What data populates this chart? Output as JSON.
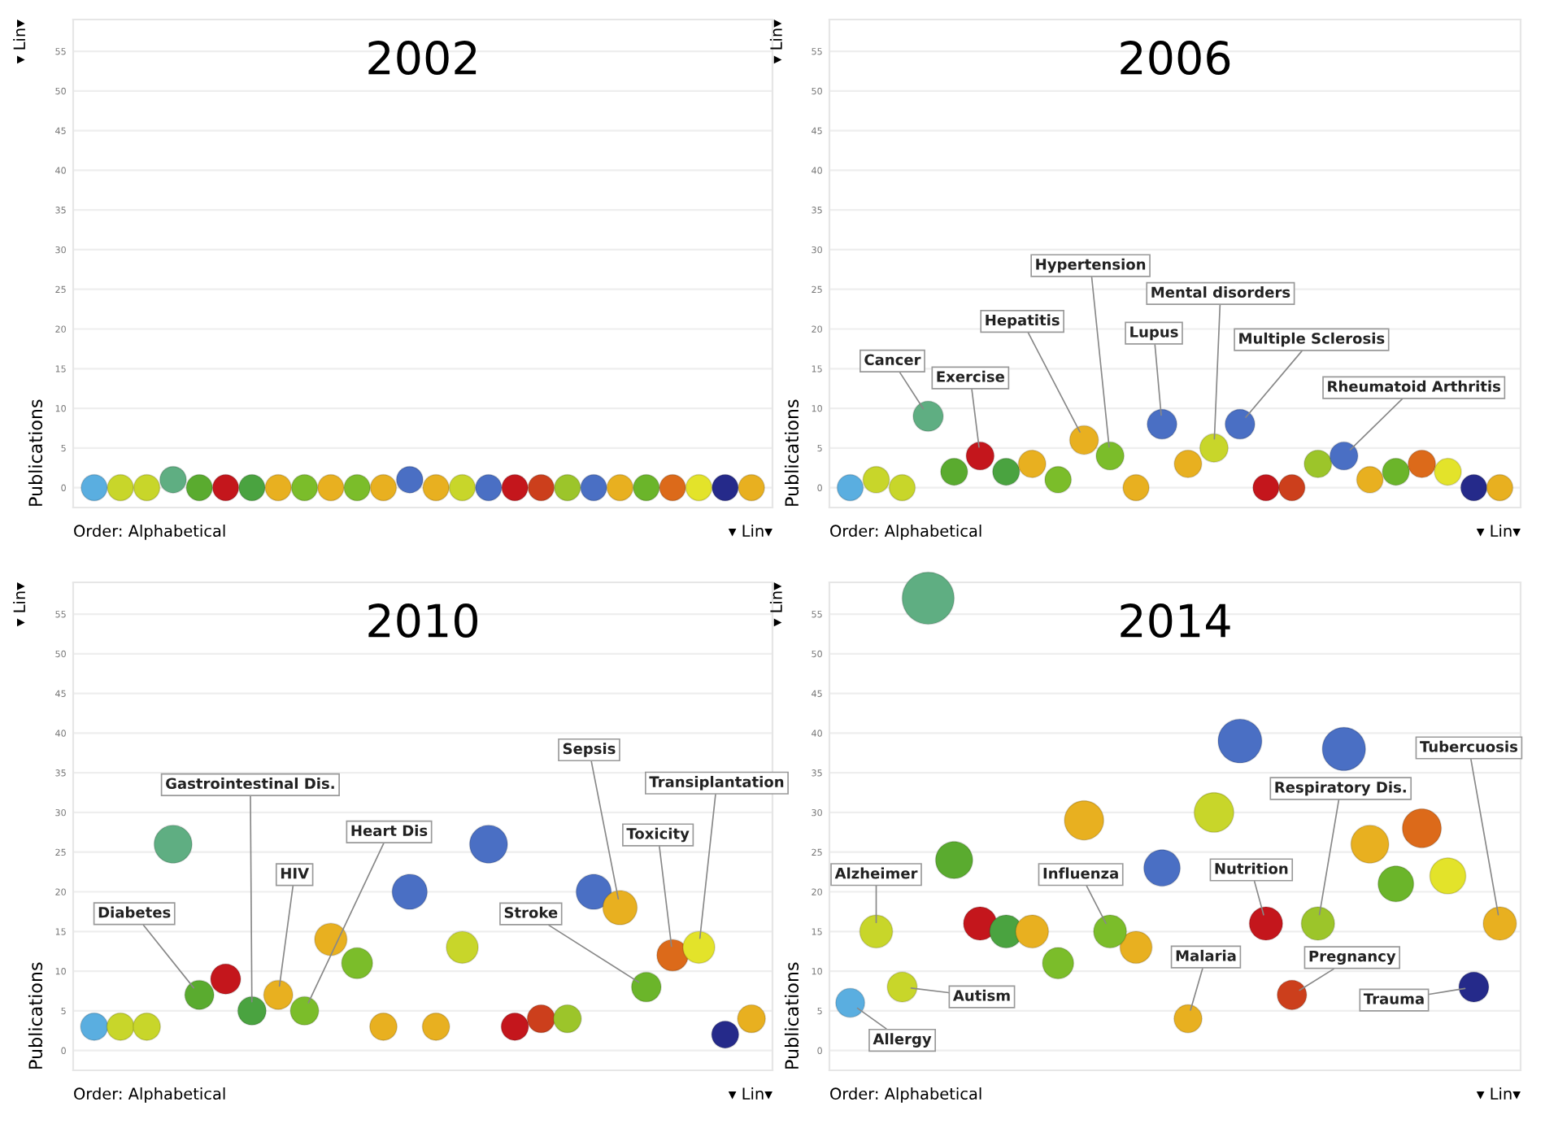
{
  "chart_data": [
    {
      "type": "bubble",
      "title": "2002",
      "ylabel": "Publications",
      "categories": [
        null,
        null,
        null,
        null,
        null,
        null,
        null,
        null,
        null,
        null,
        null,
        null,
        null,
        null,
        null,
        null,
        null,
        null,
        null,
        null,
        null,
        null,
        null,
        null,
        null,
        null
      ],
      "series": [
        {
          "values": [
            0,
            0,
            0,
            1,
            0,
            0,
            0,
            0,
            0,
            0,
            0,
            0,
            1,
            0,
            0,
            0,
            0,
            0,
            0,
            0,
            0,
            0,
            0,
            0,
            0,
            0
          ],
          "sizes": [
            0.97,
            0.97,
            0.97,
            1,
            0.97,
            0.97,
            0.97,
            0.97,
            0.97,
            0.97,
            0.97,
            0.97,
            1,
            0.97,
            0.97,
            0.97,
            0.97,
            0.97,
            0.97,
            0.97,
            0.97,
            0.97,
            0.97,
            0.97,
            0.97,
            0.97
          ],
          "colors": [
            "#5aaee0",
            "#c8d62a",
            "#c8d62a",
            "#5fae82",
            "#5aab2f",
            "#c4161c",
            "#4aa340",
            "#e8b020",
            "#7bbd2a",
            "#e8b020",
            "#7bbd2a",
            "#e8b020",
            "#4a6fc4",
            "#e8b020",
            "#c8d62a",
            "#4a6fc4",
            "#c4161c",
            "#cc3f1c",
            "#9cc52a",
            "#4a6fc4",
            "#e8b020",
            "#6bb52a",
            "#dc6a1a",
            "#e3e32a",
            "#252a8a",
            "#e8b020"
          ]
        }
      ],
      "ylim": [
        -2.5,
        59
      ],
      "yticks": [
        0,
        5,
        10,
        15,
        20,
        25,
        30,
        35,
        40,
        45,
        50,
        55
      ],
      "grid": "y",
      "annotations": [
        "Order: Alphabetical",
        "▾ Lin▾",
        "▾ Lin▾"
      ]
    },
    {
      "type": "bubble",
      "title": "2010",
      "ylabel": "Publications",
      "categories": [
        null,
        null,
        null,
        null,
        null,
        null,
        null,
        null,
        null,
        null,
        null,
        null,
        null,
        null,
        null,
        null,
        null,
        null,
        null,
        null,
        null,
        null,
        null,
        null,
        null,
        null
      ],
      "series": [
        {
          "values": [
            3,
            3,
            3,
            26,
            null,
            9,
            null,
            null,
            null,
            14,
            11,
            3,
            20,
            3,
            13,
            26,
            3,
            4,
            4,
            20,
            null,
            null,
            null,
            null,
            2,
            4
          ],
          "sizes": [
            0.52,
            0.52,
            0.52,
            1,
            null,
            0.63,
            null,
            null,
            null,
            0.73,
            0.67,
            0.52,
            0.86,
            0.52,
            0.71,
            1,
            0.52,
            0.54,
            0.54,
            0.86,
            null,
            null,
            null,
            null,
            0.51,
            0.54
          ],
          "colors": [
            "#5aaee0",
            "#c8d62a",
            "#c8d62a",
            "#5fae82",
            null,
            "#c4161c",
            null,
            null,
            null,
            "#e8b020",
            "#7bbd2a",
            "#e8b020",
            "#4a6fc4",
            "#e8b020",
            "#c8d62a",
            "#4a6fc4",
            "#c4161c",
            "#cc3f1c",
            "#9cc52a",
            "#4a6fc4",
            null,
            null,
            null,
            null,
            "#252a8a",
            "#e8b020"
          ]
        },
        {
          "name": "Diabetes",
          "color": "#5aab2f",
          "values": [
            null,
            null,
            null,
            null,
            7,
            null,
            null,
            null,
            null,
            null,
            null,
            null,
            null,
            null,
            null,
            null,
            null,
            null,
            null,
            null,
            null,
            null,
            null,
            null,
            null,
            null
          ],
          "sizes": [
            null,
            null,
            null,
            null,
            0.59,
            null,
            null,
            null,
            null,
            null,
            null,
            null,
            null,
            null,
            null,
            null,
            null,
            null,
            null,
            null,
            null,
            null,
            null,
            null,
            null,
            null
          ]
        },
        {
          "name": "Gastrointestinal Dis.",
          "color": "#4aa340",
          "values": [
            null,
            null,
            null,
            null,
            null,
            null,
            5,
            null,
            null,
            null,
            null,
            null,
            null,
            null,
            null,
            null,
            null,
            null,
            null,
            null,
            null,
            null,
            null,
            null,
            null,
            null
          ],
          "sizes": [
            null,
            null,
            null,
            null,
            null,
            null,
            0.56,
            null,
            null,
            null,
            null,
            null,
            null,
            null,
            null,
            null,
            null,
            null,
            null,
            null,
            null,
            null,
            null,
            null,
            null,
            null
          ]
        },
        {
          "name": "HIV",
          "color": "#e8b020",
          "values": [
            null,
            null,
            null,
            null,
            null,
            null,
            null,
            7,
            null,
            null,
            null,
            null,
            null,
            null,
            null,
            null,
            null,
            null,
            null,
            null,
            null,
            null,
            null,
            null,
            null,
            null
          ],
          "sizes": [
            null,
            null,
            null,
            null,
            null,
            null,
            null,
            0.59,
            null,
            null,
            null,
            null,
            null,
            null,
            null,
            null,
            null,
            null,
            null,
            null,
            null,
            null,
            null,
            null,
            null,
            null
          ]
        },
        {
          "name": "Heart Dis",
          "color": "#7bbd2a",
          "values": [
            null,
            null,
            null,
            null,
            null,
            null,
            null,
            null,
            5,
            null,
            null,
            null,
            null,
            null,
            null,
            null,
            null,
            null,
            null,
            null,
            null,
            null,
            null,
            null,
            null,
            null
          ],
          "sizes": [
            null,
            null,
            null,
            null,
            null,
            null,
            null,
            null,
            0.56,
            null,
            null,
            null,
            null,
            null,
            null,
            null,
            null,
            null,
            null,
            null,
            null,
            null,
            null,
            null,
            null,
            null
          ]
        },
        {
          "name": "Sepsis",
          "color": "#e8b020",
          "values": [
            null,
            null,
            null,
            null,
            null,
            null,
            null,
            null,
            null,
            null,
            null,
            null,
            null,
            null,
            null,
            null,
            null,
            null,
            null,
            null,
            18,
            null,
            null,
            null,
            null,
            null
          ],
          "sizes": [
            null,
            null,
            null,
            null,
            null,
            null,
            null,
            null,
            null,
            null,
            null,
            null,
            null,
            null,
            null,
            null,
            null,
            null,
            null,
            null,
            0.82,
            null,
            null,
            null,
            null,
            null
          ]
        },
        {
          "name": "Stroke",
          "color": "#6bb52a",
          "values": [
            null,
            null,
            null,
            null,
            null,
            null,
            null,
            null,
            null,
            null,
            null,
            null,
            null,
            null,
            null,
            null,
            null,
            null,
            null,
            null,
            null,
            8,
            null,
            null,
            null,
            null
          ],
          "sizes": [
            null,
            null,
            null,
            null,
            null,
            null,
            null,
            null,
            null,
            null,
            null,
            null,
            null,
            null,
            null,
            null,
            null,
            null,
            null,
            null,
            null,
            0.61,
            null,
            null,
            null,
            null
          ]
        },
        {
          "name": "Toxicity",
          "color": "#dc6a1a",
          "values": [
            null,
            null,
            null,
            null,
            null,
            null,
            null,
            null,
            null,
            null,
            null,
            null,
            null,
            null,
            null,
            null,
            null,
            null,
            null,
            null,
            null,
            null,
            12,
            null,
            null,
            null
          ],
          "sizes": [
            null,
            null,
            null,
            null,
            null,
            null,
            null,
            null,
            null,
            null,
            null,
            null,
            null,
            null,
            null,
            null,
            null,
            null,
            null,
            null,
            null,
            null,
            0.69,
            null,
            null,
            null
          ]
        },
        {
          "name": "Transiplantation",
          "color": "#e3e32a",
          "values": [
            null,
            null,
            null,
            null,
            null,
            null,
            null,
            null,
            null,
            null,
            null,
            null,
            null,
            null,
            null,
            null,
            null,
            null,
            null,
            null,
            null,
            null,
            null,
            13,
            null,
            null
          ],
          "sizes": [
            null,
            null,
            null,
            null,
            null,
            null,
            null,
            null,
            null,
            null,
            null,
            null,
            null,
            null,
            null,
            null,
            null,
            null,
            null,
            null,
            null,
            null,
            null,
            0.71,
            null,
            null
          ]
        }
      ],
      "ylim": [
        -2.5,
        59
      ],
      "yticks": [
        0,
        5,
        10,
        15,
        20,
        25,
        30,
        35,
        40,
        45,
        50,
        55
      ],
      "grid": "y",
      "annotations": [
        "Order: Alphabetical",
        "▾ Lin▾",
        "▾ Lin▾"
      ]
    },
    {
      "type": "bubble",
      "title": "2006",
      "ylabel": "Publications",
      "categories": [
        null,
        null,
        null,
        null,
        null,
        null,
        null,
        null,
        null,
        null,
        null,
        null,
        null,
        null,
        null,
        null,
        null,
        null,
        null,
        null,
        null,
        null,
        null,
        null,
        null,
        null
      ],
      "series": [
        {
          "values": [
            0,
            1,
            0,
            null,
            2,
            null,
            2,
            3,
            1,
            null,
            null,
            0,
            null,
            3,
            null,
            null,
            0,
            0,
            3,
            null,
            1,
            2,
            3,
            2,
            0,
            0
          ],
          "sizes": [
            0.75,
            0.77,
            0.75,
            null,
            0.8,
            null,
            0.8,
            0.83,
            0.77,
            null,
            null,
            0.75,
            null,
            0.83,
            null,
            null,
            0.75,
            0.75,
            0.83,
            null,
            0.77,
            0.8,
            0.83,
            0.8,
            0.75,
            0.75
          ],
          "colors": [
            "#5aaee0",
            "#c8d62a",
            "#c8d62a",
            null,
            "#5aab2f",
            null,
            "#4aa340",
            "#e8b020",
            "#7bbd2a",
            null,
            null,
            "#e8b020",
            null,
            "#e8b020",
            null,
            null,
            "#c4161c",
            "#cc3f1c",
            "#9cc52a",
            null,
            "#e8b020",
            "#6bb52a",
            "#dc6a1a",
            "#e3e32a",
            "#252a8a",
            "#e8b020"
          ]
        },
        {
          "name": "Cancer",
          "color": "#5fae82",
          "values": [
            null,
            null,
            null,
            9,
            null,
            null,
            null,
            null,
            null,
            null,
            null,
            null,
            null,
            null,
            null,
            null,
            null,
            null,
            null,
            null,
            null,
            null,
            null,
            null,
            null,
            null
          ],
          "sizes": [
            null,
            null,
            null,
            1,
            null,
            null,
            null,
            null,
            null,
            null,
            null,
            null,
            null,
            null,
            null,
            null,
            null,
            null,
            null,
            null,
            null,
            null,
            null,
            null,
            null,
            null
          ]
        },
        {
          "name": "Exercise",
          "color": "#c4161c",
          "values": [
            null,
            null,
            null,
            null,
            null,
            4,
            null,
            null,
            null,
            null,
            null,
            null,
            null,
            null,
            null,
            null,
            null,
            null,
            null,
            null,
            null,
            null,
            null,
            null,
            null,
            null
          ],
          "sizes": [
            null,
            null,
            null,
            null,
            null,
            0.86,
            null,
            null,
            null,
            null,
            null,
            null,
            null,
            null,
            null,
            null,
            null,
            null,
            null,
            null,
            null,
            null,
            null,
            null,
            null,
            null
          ]
        },
        {
          "name": "Hepatitis",
          "color": "#e8b020",
          "values": [
            null,
            null,
            null,
            null,
            null,
            null,
            null,
            null,
            null,
            6,
            null,
            null,
            null,
            null,
            null,
            null,
            null,
            null,
            null,
            null,
            null,
            null,
            null,
            null,
            null,
            null
          ],
          "sizes": [
            null,
            null,
            null,
            null,
            null,
            null,
            null,
            null,
            null,
            0.91,
            null,
            null,
            null,
            null,
            null,
            null,
            null,
            null,
            null,
            null,
            null,
            null,
            null,
            null,
            null,
            null
          ]
        },
        {
          "name": "Hypertension",
          "color": "#7bbd2a",
          "values": [
            null,
            null,
            null,
            null,
            null,
            null,
            null,
            null,
            null,
            null,
            4,
            null,
            null,
            null,
            null,
            null,
            null,
            null,
            null,
            null,
            null,
            null,
            null,
            null,
            null,
            null
          ],
          "sizes": [
            null,
            null,
            null,
            null,
            null,
            null,
            null,
            null,
            null,
            null,
            0.86,
            null,
            null,
            null,
            null,
            null,
            null,
            null,
            null,
            null,
            null,
            null,
            null,
            null,
            null,
            null
          ]
        },
        {
          "name": "Lupus",
          "color": "#4a6fc4",
          "values": [
            null,
            null,
            null,
            null,
            null,
            null,
            null,
            null,
            null,
            null,
            null,
            null,
            8,
            null,
            null,
            null,
            null,
            null,
            null,
            null,
            null,
            null,
            null,
            null,
            null,
            null
          ],
          "sizes": [
            null,
            null,
            null,
            null,
            null,
            null,
            null,
            null,
            null,
            null,
            null,
            null,
            0.97,
            null,
            null,
            null,
            null,
            null,
            null,
            null,
            null,
            null,
            null,
            null,
            null,
            null
          ]
        },
        {
          "name": "Mental disorders",
          "color": "#c8d62a",
          "values": [
            null,
            null,
            null,
            null,
            null,
            null,
            null,
            null,
            null,
            null,
            null,
            null,
            null,
            null,
            5,
            null,
            null,
            null,
            null,
            null,
            null,
            null,
            null,
            null,
            null,
            null
          ],
          "sizes": [
            null,
            null,
            null,
            null,
            null,
            null,
            null,
            null,
            null,
            null,
            null,
            null,
            null,
            null,
            0.88,
            null,
            null,
            null,
            null,
            null,
            null,
            null,
            null,
            null,
            null,
            null
          ]
        },
        {
          "name": "Multiple Sclerosis",
          "color": "#4a6fc4",
          "values": [
            null,
            null,
            null,
            null,
            null,
            null,
            null,
            null,
            null,
            null,
            null,
            null,
            null,
            null,
            null,
            8,
            null,
            null,
            null,
            null,
            null,
            null,
            null,
            null,
            null,
            null
          ],
          "sizes": [
            null,
            null,
            null,
            null,
            null,
            null,
            null,
            null,
            null,
            null,
            null,
            null,
            null,
            null,
            null,
            0.97,
            null,
            null,
            null,
            null,
            null,
            null,
            null,
            null,
            null,
            null
          ]
        },
        {
          "name": "Rheumatoid Arthritis",
          "color": "#4a6fc4",
          "values": [
            null,
            null,
            null,
            null,
            null,
            null,
            null,
            null,
            null,
            null,
            null,
            null,
            null,
            null,
            null,
            null,
            null,
            null,
            null,
            4,
            null,
            null,
            null,
            null,
            null,
            null
          ],
          "sizes": [
            null,
            null,
            null,
            null,
            null,
            null,
            null,
            null,
            null,
            null,
            null,
            null,
            null,
            null,
            null,
            null,
            null,
            null,
            null,
            0.86,
            null,
            null,
            null,
            null,
            null,
            null
          ]
        }
      ],
      "ylim": [
        -2.5,
        59
      ],
      "yticks": [
        0,
        5,
        10,
        15,
        20,
        25,
        30,
        35,
        40,
        45,
        50,
        55
      ],
      "grid": "y",
      "annotations": [
        "Order: Alphabetical",
        "▾ Lin▾",
        "▾ Lin▾"
      ]
    },
    {
      "type": "bubble",
      "title": "2014",
      "ylabel": "Publications",
      "categories": [
        null,
        null,
        null,
        null,
        null,
        null,
        null,
        null,
        null,
        null,
        null,
        null,
        null,
        null,
        null,
        null,
        null,
        null,
        null,
        null,
        null,
        null,
        null,
        null,
        null,
        null
      ],
      "series": [
        {
          "values": [
            null,
            null,
            null,
            57,
            24,
            16,
            15,
            15,
            11,
            29,
            null,
            13,
            23,
            null,
            30,
            39,
            null,
            null,
            null,
            38,
            26,
            21,
            28,
            22,
            null,
            null
          ],
          "sizes": [
            null,
            null,
            null,
            1,
            0.51,
            0.41,
            0.4,
            0.4,
            0.36,
            0.57,
            null,
            0.38,
            0.49,
            null,
            0.58,
            0.71,
            null,
            null,
            null,
            0.69,
            0.53,
            0.47,
            0.56,
            0.48,
            null,
            null
          ],
          "colors": [
            null,
            null,
            null,
            "#5fae82",
            "#5aab2f",
            "#c4161c",
            "#4aa340",
            "#e8b020",
            "#7bbd2a",
            "#e8b020",
            null,
            "#e8b020",
            "#4a6fc4",
            null,
            "#c8d62a",
            "#4a6fc4",
            null,
            null,
            null,
            "#4a6fc4",
            "#e8b020",
            "#6bb52a",
            "#dc6a1a",
            "#e3e32a",
            null,
            null
          ]
        },
        {
          "name": "Allergy",
          "color": "#5aaee0",
          "values": [
            6,
            null,
            null,
            null,
            null,
            null,
            null,
            null,
            null,
            null,
            null,
            null,
            null,
            null,
            null,
            null,
            null,
            null,
            null,
            null,
            null,
            null,
            null,
            null,
            null,
            null
          ],
          "sizes": [
            0.31,
            null,
            null,
            null,
            null,
            null,
            null,
            null,
            null,
            null,
            null,
            null,
            null,
            null,
            null,
            null,
            null,
            null,
            null,
            null,
            null,
            null,
            null,
            null,
            null,
            null
          ]
        },
        {
          "name": "Alzheimer",
          "color": "#c8d62a",
          "values": [
            null,
            15,
            null,
            null,
            null,
            null,
            null,
            null,
            null,
            null,
            null,
            null,
            null,
            null,
            null,
            null,
            null,
            null,
            null,
            null,
            null,
            null,
            null,
            null,
            null,
            null
          ],
          "sizes": [
            null,
            0.4,
            null,
            null,
            null,
            null,
            null,
            null,
            null,
            null,
            null,
            null,
            null,
            null,
            null,
            null,
            null,
            null,
            null,
            null,
            null,
            null,
            null,
            null,
            null,
            null
          ]
        },
        {
          "name": "Autism",
          "color": "#c8d62a",
          "values": [
            null,
            null,
            8,
            null,
            null,
            null,
            null,
            null,
            null,
            null,
            null,
            null,
            null,
            null,
            null,
            null,
            null,
            null,
            null,
            null,
            null,
            null,
            null,
            null,
            null,
            null
          ],
          "sizes": [
            null,
            null,
            0.33,
            null,
            null,
            null,
            null,
            null,
            null,
            null,
            null,
            null,
            null,
            null,
            null,
            null,
            null,
            null,
            null,
            null,
            null,
            null,
            null,
            null,
            null,
            null
          ]
        },
        {
          "name": "Influenza",
          "color": "#7bbd2a",
          "values": [
            null,
            null,
            null,
            null,
            null,
            null,
            null,
            null,
            null,
            null,
            15,
            null,
            null,
            null,
            null,
            null,
            null,
            null,
            null,
            null,
            null,
            null,
            null,
            null,
            null,
            null
          ],
          "sizes": [
            null,
            null,
            null,
            null,
            null,
            null,
            null,
            null,
            null,
            null,
            0.4,
            null,
            null,
            null,
            null,
            null,
            null,
            null,
            null,
            null,
            null,
            null,
            null,
            null,
            null,
            null
          ]
        },
        {
          "name": "Malaria",
          "color": "#e8b020",
          "values": [
            null,
            null,
            null,
            null,
            null,
            null,
            null,
            null,
            null,
            null,
            null,
            null,
            null,
            4,
            null,
            null,
            null,
            null,
            null,
            null,
            null,
            null,
            null,
            null,
            null,
            null
          ],
          "sizes": [
            null,
            null,
            null,
            null,
            null,
            null,
            null,
            null,
            null,
            null,
            null,
            null,
            null,
            0.29,
            null,
            null,
            null,
            null,
            null,
            null,
            null,
            null,
            null,
            null,
            null,
            null
          ]
        },
        {
          "name": "Nutrition",
          "color": "#c4161c",
          "values": [
            null,
            null,
            null,
            null,
            null,
            null,
            null,
            null,
            null,
            null,
            null,
            null,
            null,
            null,
            null,
            null,
            16,
            null,
            null,
            null,
            null,
            null,
            null,
            null,
            null,
            null
          ],
          "sizes": [
            null,
            null,
            null,
            null,
            null,
            null,
            null,
            null,
            null,
            null,
            null,
            null,
            null,
            null,
            null,
            null,
            0.41,
            null,
            null,
            null,
            null,
            null,
            null,
            null,
            null,
            null
          ]
        },
        {
          "name": "Pregnancy",
          "color": "#cc3f1c",
          "values": [
            null,
            null,
            null,
            null,
            null,
            null,
            null,
            null,
            null,
            null,
            null,
            null,
            null,
            null,
            null,
            null,
            null,
            7,
            null,
            null,
            null,
            null,
            null,
            null,
            null,
            null
          ],
          "sizes": [
            null,
            null,
            null,
            null,
            null,
            null,
            null,
            null,
            null,
            null,
            null,
            null,
            null,
            null,
            null,
            null,
            null,
            0.32,
            null,
            null,
            null,
            null,
            null,
            null,
            null,
            null
          ]
        },
        {
          "name": "Respiratory Dis.",
          "color": "#9cc52a",
          "values": [
            null,
            null,
            null,
            null,
            null,
            null,
            null,
            null,
            null,
            null,
            null,
            null,
            null,
            null,
            null,
            null,
            null,
            null,
            16,
            null,
            null,
            null,
            null,
            null,
            null,
            null
          ],
          "sizes": [
            null,
            null,
            null,
            null,
            null,
            null,
            null,
            null,
            null,
            null,
            null,
            null,
            null,
            null,
            null,
            null,
            null,
            null,
            0.41,
            null,
            null,
            null,
            null,
            null,
            null,
            null
          ]
        },
        {
          "name": "Trauma",
          "color": "#252a8a",
          "values": [
            null,
            null,
            null,
            null,
            null,
            null,
            null,
            null,
            null,
            null,
            null,
            null,
            null,
            null,
            null,
            null,
            null,
            null,
            null,
            null,
            null,
            null,
            null,
            null,
            8,
            null
          ],
          "sizes": [
            null,
            null,
            null,
            null,
            null,
            null,
            null,
            null,
            null,
            null,
            null,
            null,
            null,
            null,
            null,
            null,
            null,
            null,
            null,
            null,
            null,
            null,
            null,
            null,
            0.33,
            null
          ]
        },
        {
          "name": "Tubercuosis",
          "color": "#e8b020",
          "values": [
            null,
            null,
            null,
            null,
            null,
            null,
            null,
            null,
            null,
            null,
            null,
            null,
            null,
            null,
            null,
            null,
            null,
            null,
            null,
            null,
            null,
            null,
            null,
            null,
            null,
            16
          ],
          "sizes": [
            null,
            null,
            null,
            null,
            null,
            null,
            null,
            null,
            null,
            null,
            null,
            null,
            null,
            null,
            null,
            null,
            null,
            null,
            null,
            null,
            null,
            null,
            null,
            null,
            null,
            0.41
          ]
        }
      ],
      "ylim": [
        -2.5,
        59
      ],
      "yticks": [
        0,
        5,
        10,
        15,
        20,
        25,
        30,
        35,
        40,
        45,
        50,
        55
      ],
      "grid": "y",
      "annotations": [
        "Order: Alphabetical",
        "▾ Lin▾",
        "▾ Lin▾"
      ]
    }
  ]
}
